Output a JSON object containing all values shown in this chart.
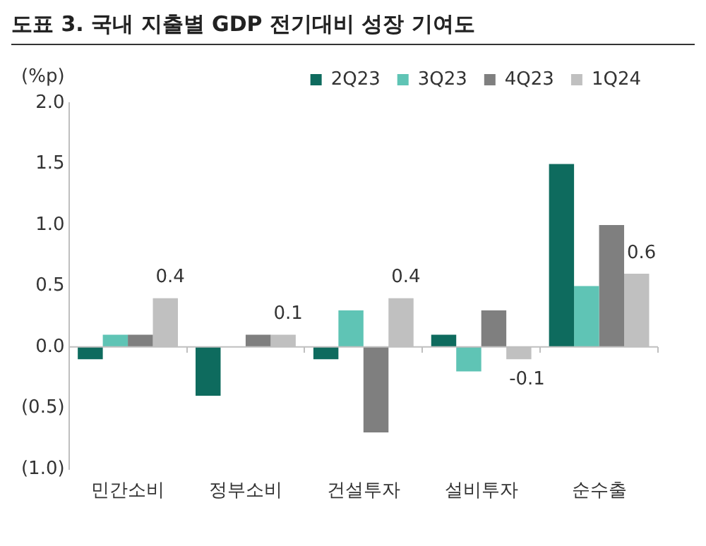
{
  "chart_data": {
    "type": "bar",
    "title": "도표 3. 국내 지출별 GDP 전기대비 성장 기여도",
    "ylabel": "(%p)",
    "categories": [
      "민간소비",
      "정부소비",
      "건설투자",
      "설비투자",
      "순수출"
    ],
    "series": [
      {
        "name": "2Q23",
        "color": "#0e6b5e",
        "values": [
          -0.1,
          -0.4,
          -0.1,
          0.1,
          1.5
        ]
      },
      {
        "name": "3Q23",
        "color": "#5fc4b5",
        "values": [
          0.1,
          0,
          0.3,
          -0.2,
          0.5
        ]
      },
      {
        "name": "4Q23",
        "color": "#7f7f7f",
        "values": [
          0.1,
          0.1,
          -0.7,
          0.3,
          1.0
        ]
      },
      {
        "name": "1Q24",
        "color": "#c0c0c0",
        "values": [
          0.4,
          0.1,
          0.4,
          -0.1,
          0.6
        ],
        "value_labels": [
          "0.4",
          "0.1",
          "0.4",
          "-0.1",
          "0.6"
        ]
      }
    ],
    "ylim": [
      -1.0,
      2.0
    ],
    "yticks": [
      {
        "value": -1.0,
        "label": "(1.0)"
      },
      {
        "value": -0.5,
        "label": "(0.5)"
      },
      {
        "value": 0,
        "label": "0.0"
      },
      {
        "value": 0.5,
        "label": "0.5"
      },
      {
        "value": 1.0,
        "label": "1.0"
      },
      {
        "value": 1.5,
        "label": "1.5"
      },
      {
        "value": 2.0,
        "label": "2.0"
      }
    ],
    "ref_lines": [
      {
        "axis": "y",
        "value": 0,
        "color": "#bfbfbf"
      }
    ],
    "grid": false,
    "legend": "top right"
  }
}
